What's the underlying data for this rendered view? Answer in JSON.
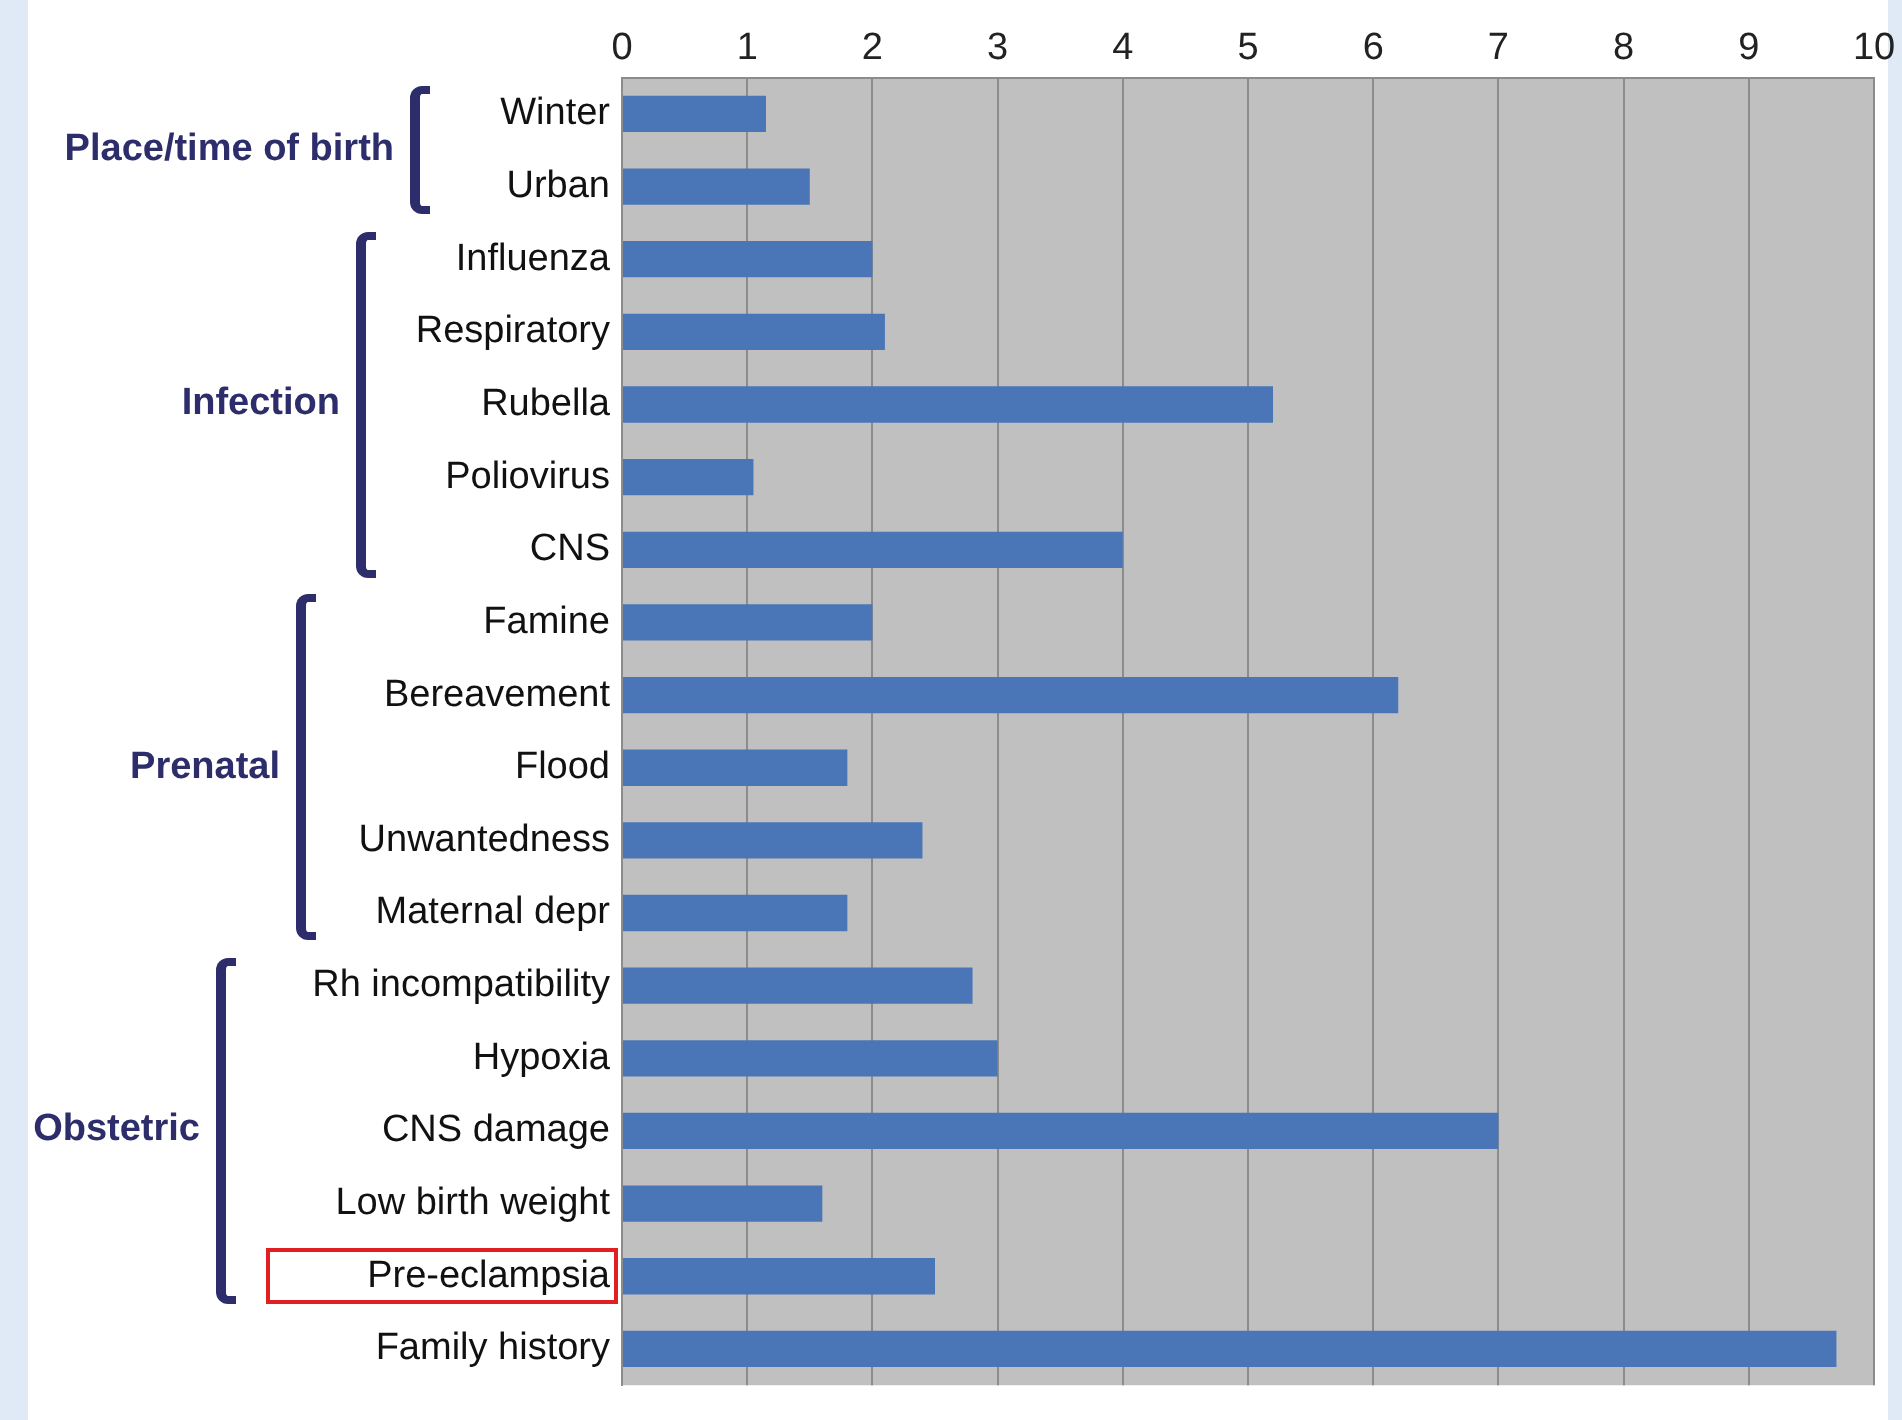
{
  "chart_data": {
    "type": "bar",
    "orientation": "horizontal",
    "categories": [
      "Winter",
      "Urban",
      "Influenza",
      "Respiratory",
      "Rubella",
      "Poliovirus",
      "CNS",
      "Famine",
      "Bereavement",
      "Flood",
      "Unwantedness",
      "Maternal depr",
      "Rh incompatibility",
      "Hypoxia",
      "CNS damage",
      "Low birth weight",
      "Pre-eclampsia",
      "Family history"
    ],
    "values": [
      1.15,
      1.5,
      2.0,
      2.1,
      5.2,
      1.05,
      4.0,
      2.0,
      6.2,
      1.8,
      2.4,
      1.8,
      2.8,
      3.0,
      7.0,
      1.6,
      2.5,
      9.7
    ],
    "color": "#4a76b8",
    "xlim": [
      0,
      10
    ],
    "xticks": [
      0,
      1,
      2,
      3,
      4,
      5,
      6,
      7,
      8,
      9,
      10
    ],
    "grid": "x",
    "annotations": [
      "Place/time of birth",
      "Infection",
      "Prenatal",
      "Obstetric"
    ]
  }
}
